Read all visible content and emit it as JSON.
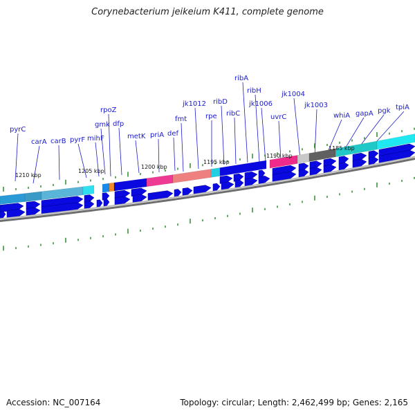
{
  "title": "Corynebacterium jeikeium K411, complete genome",
  "footer": {
    "accession": "Accession: NC_007164",
    "summary": "Topology: circular; Length: 2,462,499 bp; Genes: 2,165"
  },
  "colors": {
    "gene_label": "#1a1acc",
    "arrow": "#0a0ae0",
    "tick": "#2a8a2a",
    "backbone": "#6e6e6e"
  },
  "gene_labels": [
    "pyrC",
    "carA",
    "carB",
    "pyrF",
    "mihF",
    "gmk",
    "rpoZ",
    "dfp",
    "metK",
    "priA",
    "def",
    "fmt",
    "jk1012",
    "rpe",
    "ribD",
    "ribC",
    "ribA",
    "ribH",
    "jk1006",
    "uvrC",
    "jk1004",
    "jk1003",
    "whiA",
    "gapA",
    "pgk",
    "tpiA"
  ],
  "kbp_labels": [
    "1210 kbp",
    "1205 kbp",
    "1200 kbp",
    "1195 kbp",
    "1190 kbp",
    "1185 kbp"
  ]
}
